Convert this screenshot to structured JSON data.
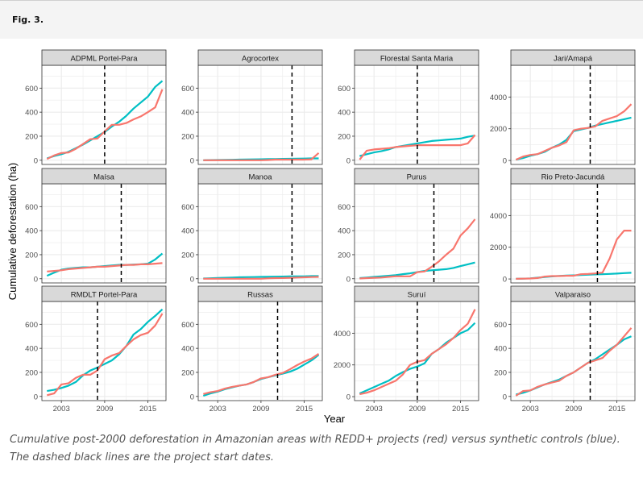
{
  "figure": {
    "label": "Fig. 3.",
    "caption": "Cumulative post-2000 deforestation in Amazonian areas with REDD+ projects (red) versus synthetic controls (blue). The dashed black lines are the project start dates."
  },
  "colors": {
    "project": "#f8766d",
    "control": "#00bfc4",
    "start_line": "#000000",
    "strip_bg": "#d9d9d9",
    "grid": "#ebebeb"
  },
  "chart_data": {
    "type": "line",
    "title": "",
    "xlabel": "Year",
    "ylabel": "Cumulative deforestation (ha)",
    "x_ticks": [
      2003,
      2009,
      2015
    ],
    "xlim": [
      2000.3,
      2017.5
    ],
    "grid": true,
    "legend": "none",
    "series_names": [
      "REDD+ project (red)",
      "Synthetic control (blue)"
    ],
    "years": [
      2001,
      2002,
      2003,
      2004,
      2005,
      2006,
      2007,
      2008,
      2009,
      2010,
      2011,
      2012,
      2013,
      2014,
      2015,
      2016,
      2017
    ],
    "panels": [
      {
        "name": "ADPML Portel-Para",
        "ylim": [
          -35,
          790
        ],
        "y_ticks": [
          0,
          200,
          400,
          600
        ],
        "start_year": 2009,
        "project": [
          10,
          40,
          60,
          65,
          95,
          135,
          175,
          180,
          240,
          295,
          295,
          310,
          340,
          365,
          400,
          440,
          590
        ],
        "control": [
          15,
          35,
          50,
          70,
          100,
          130,
          165,
          200,
          235,
          280,
          320,
          370,
          430,
          480,
          530,
          610,
          660
        ]
      },
      {
        "name": "Agrocortex",
        "ylim": [
          -35,
          790
        ],
        "y_ticks": [
          0,
          200,
          400,
          600
        ],
        "start_year": 2013.3,
        "project": [
          0,
          0,
          0,
          0,
          0,
          0,
          0,
          0,
          0,
          2,
          5,
          5,
          5,
          5,
          5,
          8,
          60
        ],
        "control": [
          0,
          1,
          2,
          3,
          4,
          5,
          6,
          7,
          8,
          9,
          10,
          11,
          12,
          13,
          14,
          15,
          15
        ]
      },
      {
        "name": "Florestal Santa Maria",
        "ylim": [
          -35,
          790
        ],
        "y_ticks": [
          0,
          200,
          400,
          600
        ],
        "start_year": 2009,
        "project": [
          5,
          80,
          90,
          95,
          100,
          110,
          115,
          120,
          125,
          125,
          125,
          125,
          125,
          125,
          125,
          140,
          210
        ],
        "control": [
          35,
          50,
          65,
          75,
          90,
          110,
          120,
          130,
          140,
          150,
          160,
          165,
          170,
          175,
          180,
          195,
          205
        ]
      },
      {
        "name": "Jari/Amapá",
        "ylim": [
          -250,
          6000
        ],
        "y_ticks": [
          0,
          2000,
          4000
        ],
        "start_year": 2011.3,
        "project": [
          50,
          250,
          350,
          400,
          600,
          800,
          950,
          1150,
          1900,
          2000,
          2050,
          2150,
          2500,
          2650,
          2800,
          3100,
          3550
        ],
        "control": [
          50,
          150,
          300,
          400,
          550,
          800,
          1000,
          1300,
          1850,
          1950,
          2050,
          2200,
          2300,
          2400,
          2500,
          2600,
          2700
        ]
      },
      {
        "name": "Maísa",
        "ylim": [
          -35,
          790
        ],
        "y_ticks": [
          0,
          200,
          400,
          600
        ],
        "start_year": 2011.3,
        "project": [
          60,
          65,
          70,
          80,
          85,
          90,
          95,
          100,
          100,
          105,
          110,
          115,
          115,
          120,
          120,
          125,
          130
        ],
        "control": [
          25,
          50,
          75,
          85,
          90,
          95,
          95,
          100,
          105,
          110,
          115,
          115,
          118,
          120,
          125,
          160,
          210
        ]
      },
      {
        "name": "Manoa",
        "ylim": [
          -35,
          790
        ],
        "y_ticks": [
          0,
          200,
          400,
          600
        ],
        "start_year": 2013.3,
        "project": [
          0,
          0,
          0,
          0,
          0,
          0,
          0,
          0,
          0,
          3,
          5,
          6,
          8,
          10,
          12,
          14,
          15
        ],
        "control": [
          2,
          4,
          6,
          8,
          10,
          12,
          13,
          14,
          15,
          16,
          17,
          18,
          19,
          20,
          20,
          22,
          22
        ]
      },
      {
        "name": "Purus",
        "ylim": [
          -35,
          790
        ],
        "y_ticks": [
          0,
          200,
          400,
          600
        ],
        "start_year": 2011.3,
        "project": [
          2,
          5,
          8,
          10,
          15,
          20,
          20,
          20,
          55,
          60,
          100,
          145,
          200,
          250,
          360,
          420,
          495
        ],
        "control": [
          5,
          10,
          15,
          20,
          25,
          30,
          38,
          45,
          55,
          65,
          70,
          75,
          80,
          90,
          105,
          120,
          135
        ]
      },
      {
        "name": "Rio Preto-Jacundá",
        "ylim": [
          -250,
          6000
        ],
        "y_ticks": [
          0,
          2000,
          4000
        ],
        "start_year": 2012.3,
        "project": [
          10,
          20,
          30,
          60,
          150,
          180,
          180,
          200,
          200,
          300,
          320,
          350,
          400,
          1300,
          2500,
          3050,
          3050
        ],
        "control": [
          10,
          20,
          40,
          80,
          120,
          160,
          190,
          210,
          230,
          250,
          270,
          290,
          300,
          320,
          340,
          370,
          390
        ]
      },
      {
        "name": "RMDLT Portel-Para",
        "ylim": [
          -35,
          790
        ],
        "y_ticks": [
          0,
          200,
          400,
          600
        ],
        "start_year": 2008,
        "project": [
          10,
          25,
          100,
          110,
          155,
          180,
          180,
          215,
          310,
          340,
          360,
          420,
          475,
          510,
          530,
          590,
          690
        ],
        "control": [
          45,
          55,
          70,
          90,
          120,
          175,
          215,
          240,
          270,
          300,
          350,
          420,
          515,
          560,
          620,
          670,
          725
        ]
      },
      {
        "name": "Russas",
        "ylim": [
          -35,
          790
        ],
        "y_ticks": [
          0,
          200,
          400,
          600
        ],
        "start_year": 2011.3,
        "project": [
          20,
          35,
          45,
          65,
          80,
          90,
          100,
          120,
          150,
          160,
          180,
          195,
          225,
          260,
          290,
          315,
          355
        ],
        "control": [
          5,
          25,
          40,
          60,
          75,
          90,
          100,
          120,
          145,
          160,
          175,
          190,
          205,
          230,
          265,
          300,
          345
        ]
      },
      {
        "name": "Suruí",
        "ylim": [
          -250,
          6000
        ],
        "y_ticks": [
          0,
          2000,
          4000
        ],
        "start_year": 2009,
        "project": [
          150,
          250,
          400,
          600,
          800,
          1000,
          1400,
          2000,
          2200,
          2300,
          2700,
          3000,
          3300,
          3700,
          4200,
          4600,
          5500
        ],
        "control": [
          200,
          400,
          600,
          800,
          1000,
          1300,
          1550,
          1750,
          1900,
          2100,
          2700,
          3000,
          3400,
          3700,
          4000,
          4200,
          4650
        ]
      },
      {
        "name": "Valparaiso",
        "ylim": [
          -35,
          790
        ],
        "y_ticks": [
          0,
          200,
          400,
          600
        ],
        "start_year": 2011.3,
        "project": [
          5,
          45,
          50,
          80,
          100,
          115,
          130,
          170,
          200,
          240,
          280,
          300,
          320,
          380,
          430,
          500,
          570
        ],
        "control": [
          15,
          30,
          50,
          75,
          100,
          120,
          140,
          170,
          200,
          240,
          280,
          310,
          350,
          390,
          430,
          475,
          500
        ]
      }
    ]
  }
}
